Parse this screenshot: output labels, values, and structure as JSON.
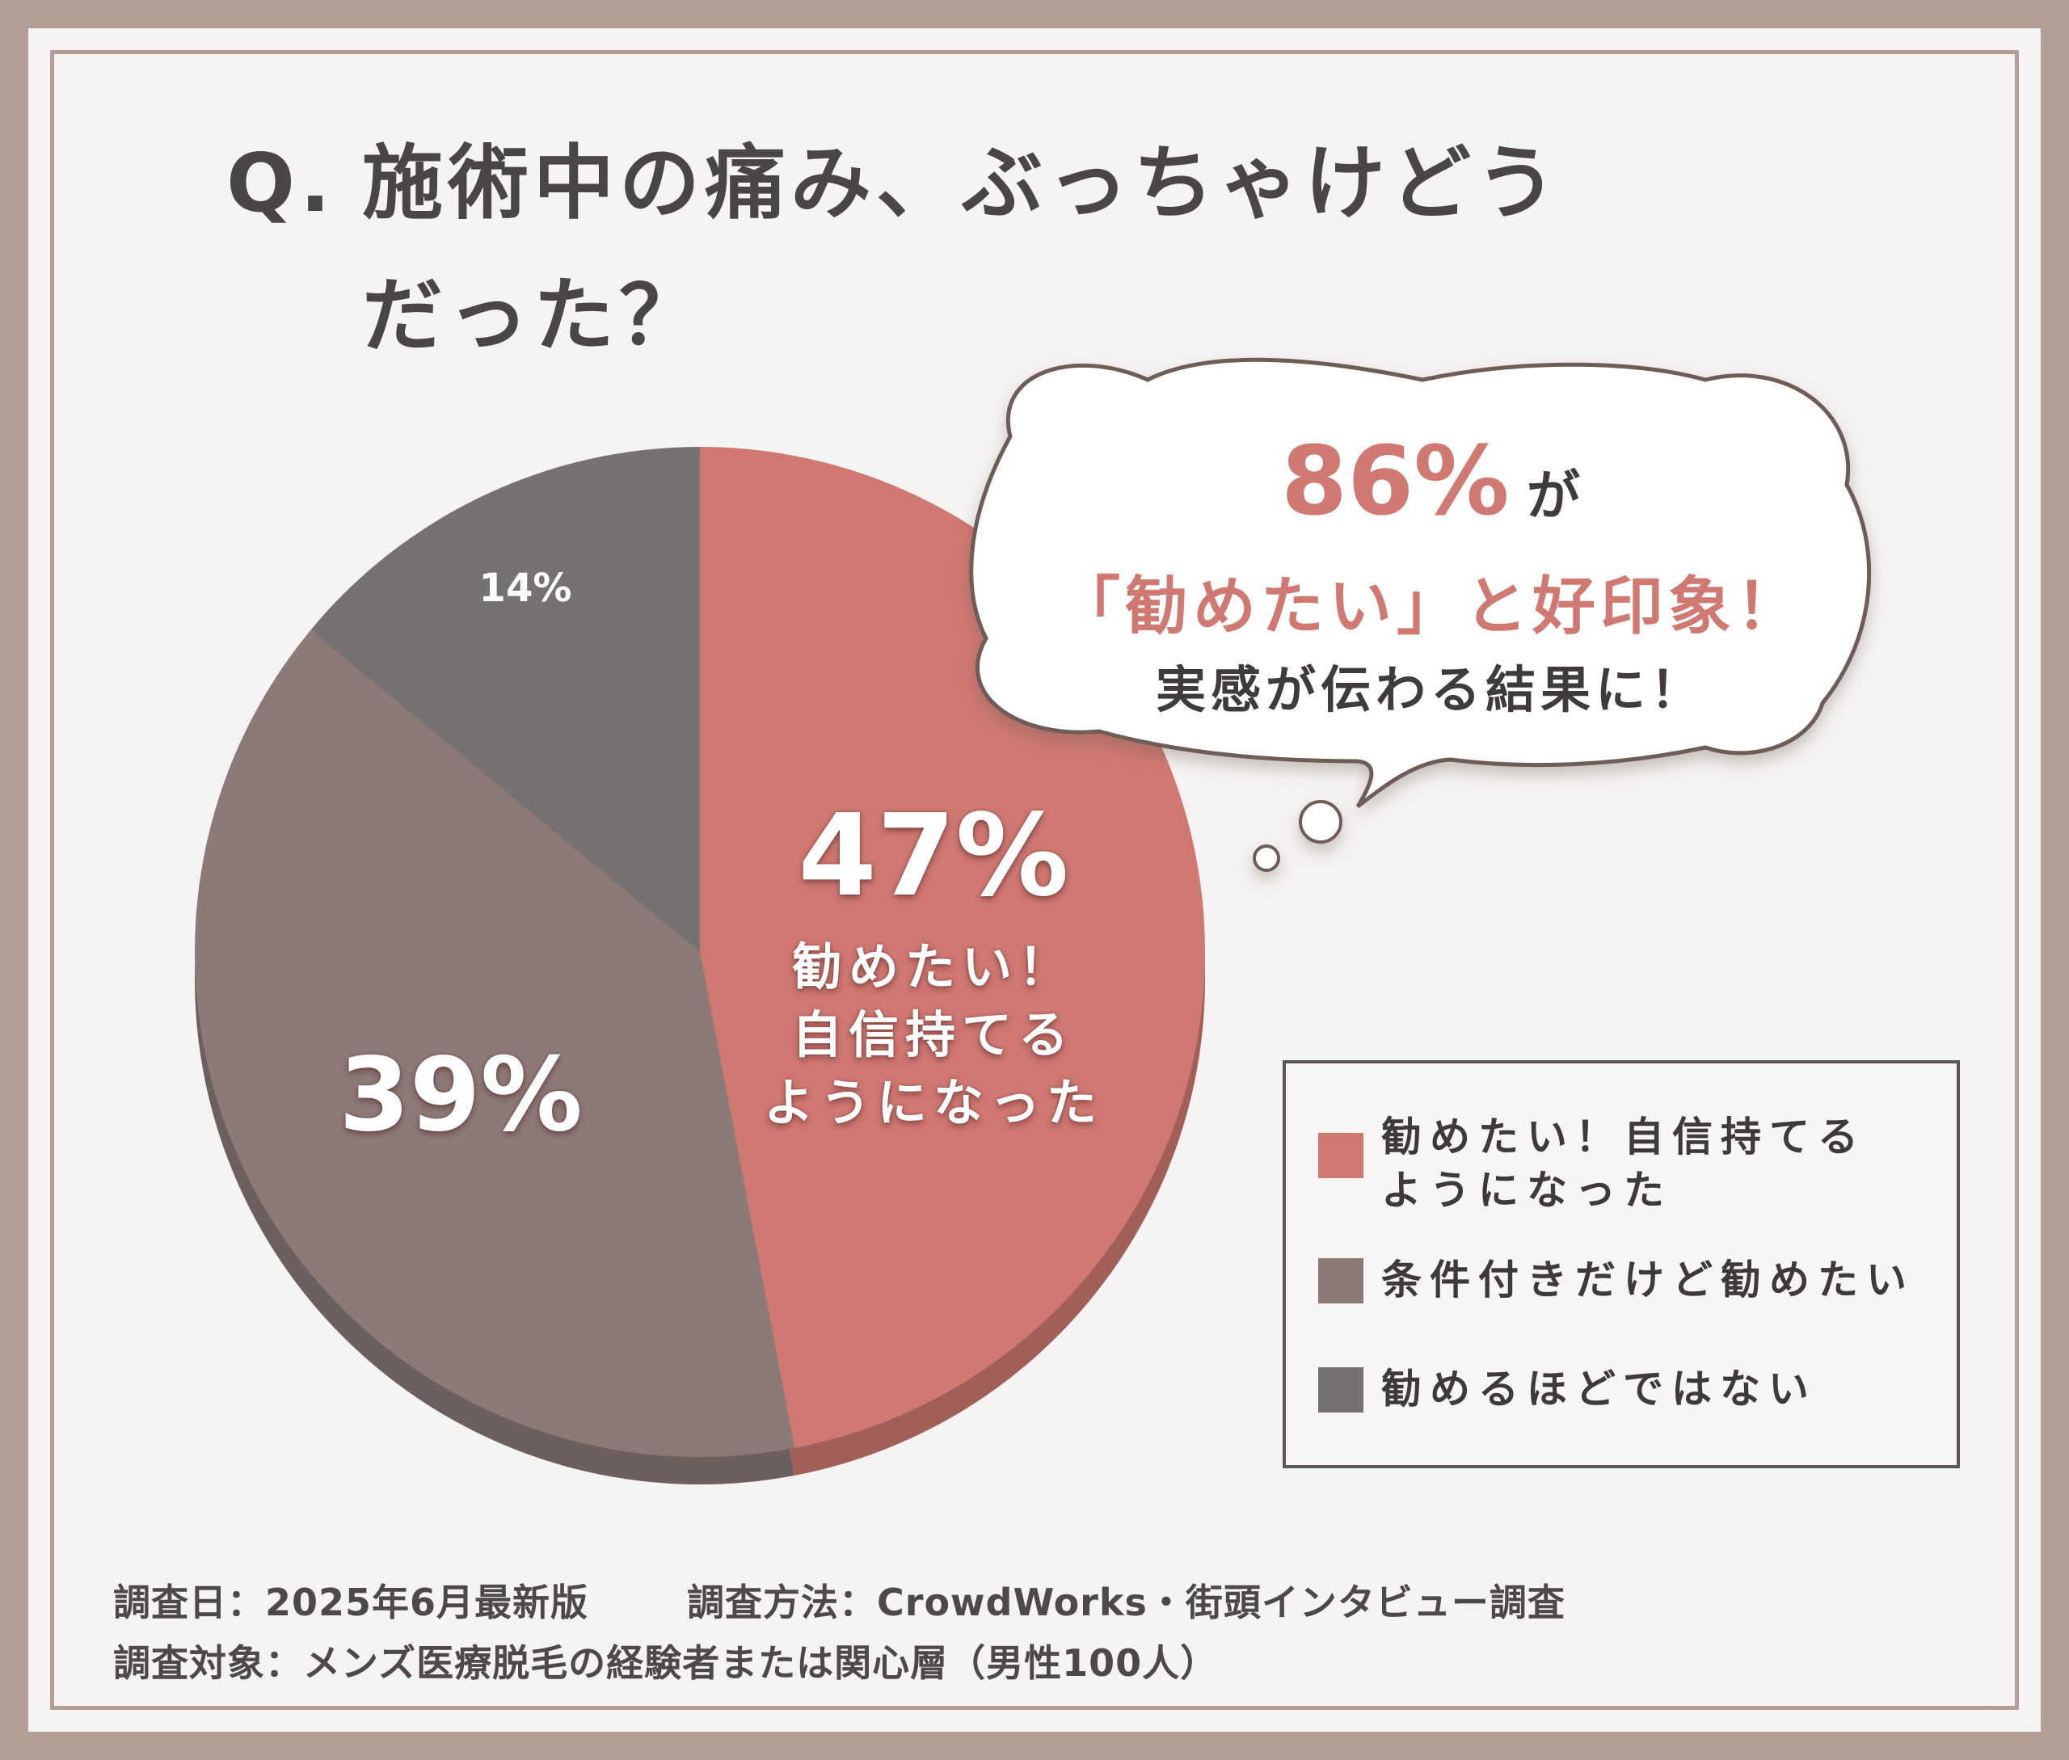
{
  "title": {
    "prefix": "Q.",
    "line1": "施術中の痛み、ぶっちゃけどう",
    "line2": "だった？"
  },
  "callout": {
    "percent": "86%",
    "particle": "が",
    "line2": "「勧めたい」と好印象！",
    "line3": "実感が伝わる結果に！"
  },
  "chart_data": {
    "type": "pie",
    "series": [
      {
        "name": "勧めたい！自信持てるようになった",
        "value": 47,
        "color": "#d07872",
        "label": "47%",
        "caption": [
          "勧めたい！",
          "自信持てる",
          "ようになった"
        ]
      },
      {
        "name": "条件付きだけど勧めたい",
        "value": 39,
        "color": "#8c7a77",
        "label": "39%"
      },
      {
        "name": "勧めるほどではない",
        "value": 14,
        "color": "#777272",
        "label": "14%"
      }
    ],
    "legend": {
      "position": "right",
      "items": [
        {
          "lines": [
            "勧めたい！自信持てる",
            "ようになった"
          ],
          "color": "#d07872"
        },
        {
          "lines": [
            "条件付きだけど勧めたい"
          ],
          "color": "#8c7a77"
        },
        {
          "lines": [
            "勧めるほどではない"
          ],
          "color": "#777272"
        }
      ]
    }
  },
  "footer": {
    "date": "調査日：2025年6月最新版",
    "method": "調査方法：CrowdWorks・街頭インタビュー調査",
    "target": "調査対象：メンズ医療脱毛の経験者または関心層（男性100人）"
  },
  "colors": {
    "accent": "#d07872",
    "frame": "#b29e94",
    "text": "#4a4646"
  }
}
